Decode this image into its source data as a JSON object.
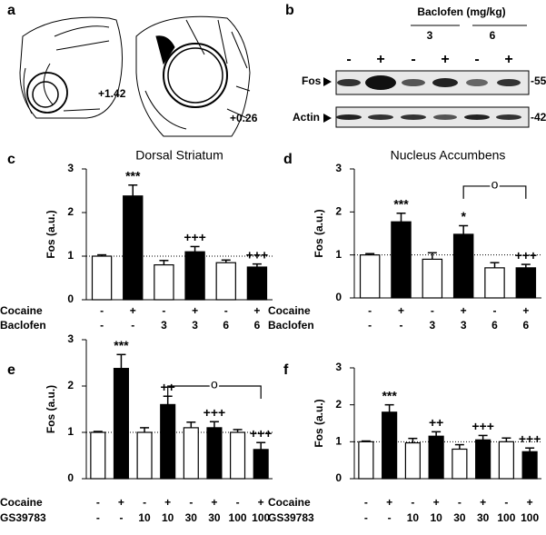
{
  "panel_a": {
    "letter": "a",
    "levels": [
      "+1.42",
      "+0.26"
    ]
  },
  "panel_b": {
    "letter": "b",
    "drug": "Baclofen (mg/kg)",
    "doses": [
      "3",
      "6"
    ],
    "lanes": [
      "-",
      "+",
      "-",
      "+",
      "-",
      "+"
    ],
    "rows": [
      {
        "name": "Fos",
        "marker": "-55"
      },
      {
        "name": "Actin",
        "marker": "-42"
      }
    ]
  },
  "chart_data": [
    {
      "type": "bar",
      "letter": "c",
      "title": "Dorsal Striatum",
      "ylabel": "Fos (a.u.)",
      "ylim": [
        0,
        3
      ],
      "yticks": [
        0,
        1,
        2,
        3
      ],
      "refline": 1,
      "values": [
        1.0,
        2.38,
        0.8,
        1.1,
        0.85,
        0.75
      ],
      "errors": [
        0.03,
        0.25,
        0.1,
        0.12,
        0.06,
        0.07
      ],
      "colors": [
        "#ffffff",
        "#000000",
        "#ffffff",
        "#000000",
        "#ffffff",
        "#000000"
      ],
      "significance": [
        null,
        "***",
        null,
        "+++",
        null,
        "+++"
      ],
      "rows": [
        {
          "name": "Cocaine",
          "values": [
            "-",
            "+",
            "-",
            "+",
            "-",
            "+"
          ]
        },
        {
          "name": "Baclofen",
          "values": [
            "-",
            "-",
            "3",
            "3",
            "6",
            "6"
          ]
        }
      ]
    },
    {
      "type": "bar",
      "letter": "d",
      "title": "Nucleus Accumbens",
      "ylabel": "Fos (a.u.)",
      "ylim": [
        0,
        3
      ],
      "yticks": [
        0,
        1,
        2,
        3
      ],
      "refline": 1,
      "values": [
        1.0,
        1.77,
        0.9,
        1.48,
        0.7,
        0.7
      ],
      "errors": [
        0.03,
        0.2,
        0.15,
        0.2,
        0.12,
        0.08
      ],
      "colors": [
        "#ffffff",
        "#000000",
        "#ffffff",
        "#000000",
        "#ffffff",
        "#000000"
      ],
      "significance": [
        null,
        "***",
        null,
        "*",
        null,
        "+++"
      ],
      "bracket": {
        "label": "o",
        "y": 2.6,
        "from": 3,
        "to": 5
      },
      "rows": [
        {
          "name": "Cocaine",
          "values": [
            "-",
            "+",
            "-",
            "+",
            "-",
            "+"
          ]
        },
        {
          "name": "Baclofen",
          "values": [
            "-",
            "-",
            "3",
            "3",
            "6",
            "6"
          ]
        }
      ]
    },
    {
      "type": "bar",
      "letter": "e",
      "ylabel": "Fos (a.u.)",
      "ylim": [
        0,
        3
      ],
      "yticks": [
        0,
        1,
        2,
        3
      ],
      "refline": 1,
      "values": [
        1.0,
        2.38,
        1.0,
        1.6,
        1.1,
        1.1,
        1.0,
        0.63
      ],
      "errors": [
        0.02,
        0.3,
        0.1,
        0.18,
        0.12,
        0.13,
        0.06,
        0.15
      ],
      "colors": [
        "#ffffff",
        "#000000",
        "#ffffff",
        "#000000",
        "#ffffff",
        "#000000",
        "#ffffff",
        "#000000"
      ],
      "significance": [
        null,
        "***",
        null,
        "++",
        null,
        "+++",
        null,
        "+++"
      ],
      "bracket": {
        "label": "o",
        "y": 2.0,
        "from": 3,
        "to": 7
      },
      "rows": [
        {
          "name": "Cocaine",
          "values": [
            "-",
            "+",
            "-",
            "+",
            "-",
            "+",
            "-",
            "+"
          ]
        },
        {
          "name": "GS39783",
          "values": [
            "-",
            "-",
            "10",
            "10",
            "30",
            "30",
            "100",
            "100"
          ]
        }
      ]
    },
    {
      "type": "bar",
      "letter": "f",
      "ylabel": "Fos (a.u.)",
      "ylim": [
        0,
        3
      ],
      "yticks": [
        0,
        1,
        2,
        3
      ],
      "refline": 1,
      "values": [
        1.0,
        1.8,
        0.97,
        1.15,
        0.8,
        1.05,
        1.0,
        0.73
      ],
      "errors": [
        0.02,
        0.2,
        0.12,
        0.12,
        0.12,
        0.12,
        0.1,
        0.1
      ],
      "colors": [
        "#ffffff",
        "#000000",
        "#ffffff",
        "#000000",
        "#ffffff",
        "#000000",
        "#ffffff",
        "#000000"
      ],
      "significance": [
        null,
        "***",
        null,
        "++",
        null,
        "+++",
        null,
        "+++"
      ],
      "rows": [
        {
          "name": "Cocaine",
          "values": [
            "-",
            "+",
            "-",
            "+",
            "-",
            "+",
            "-",
            "+"
          ]
        },
        {
          "name": "GS39783",
          "values": [
            "-",
            "-",
            "10",
            "10",
            "30",
            "30",
            "100",
            "100"
          ]
        }
      ]
    }
  ]
}
